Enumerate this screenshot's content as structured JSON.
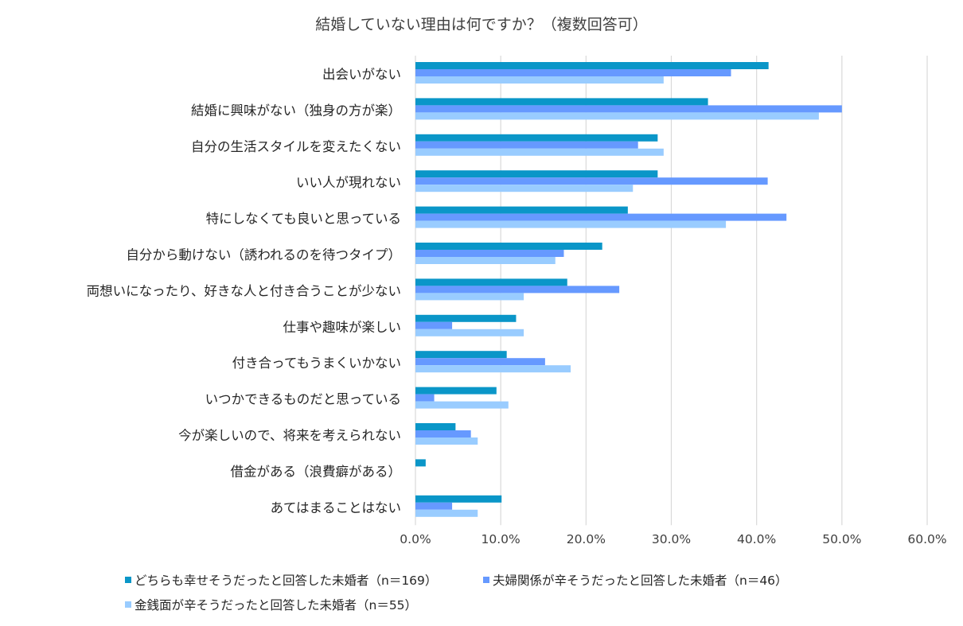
{
  "chart_data": {
    "type": "bar",
    "orientation": "horizontal",
    "title": "結婚していない理由は何ですか？（複数回答可）",
    "categories": [
      "出会いがない",
      "結婚に興味がない（独身の方が楽）",
      "自分の生活スタイルを変えたくない",
      "いい人が現れない",
      "特にしなくても良いと思っている",
      "自分から動けない（誘われるのを待つタイプ）",
      "両想いになったり、好きな人と付き合うことが少ない",
      "仕事や趣味が楽しい",
      "付き合ってもうまくいかない",
      "いつかできるものだと思っている",
      "今が楽しいので、将来を考えられない",
      "借金がある（浪費癖がある）",
      "あてはまることはない"
    ],
    "series": [
      {
        "name": "どちらも幸せそうだったと回答した未婚者（n＝169）",
        "color": "#0A96C8",
        "values": [
          41.4,
          34.3,
          28.4,
          28.4,
          24.9,
          21.9,
          17.8,
          11.8,
          10.7,
          9.5,
          4.7,
          1.2,
          10.1
        ]
      },
      {
        "name": "夫婦関係が辛そうだったと回答した未婚者（n＝46）",
        "color": "#6699FF",
        "values": [
          37.0,
          50.0,
          26.1,
          41.3,
          43.5,
          17.4,
          23.9,
          4.3,
          15.2,
          2.2,
          6.5,
          0.0,
          4.3
        ]
      },
      {
        "name": "金銭面が辛そうだったと回答した未婚者（n＝55）",
        "color": "#99CCFF",
        "values": [
          29.1,
          47.3,
          29.1,
          25.5,
          36.4,
          16.4,
          12.7,
          12.7,
          18.2,
          10.9,
          7.3,
          0.0,
          7.3
        ]
      }
    ],
    "xlim": [
      0,
      60
    ],
    "xticks": [
      "0.0%",
      "10.0%",
      "20.0%",
      "30.0%",
      "40.0%",
      "50.0%",
      "60.0%"
    ],
    "xlabel": "",
    "ylabel": "",
    "grid": "vertical",
    "legend_position": "bottom"
  }
}
